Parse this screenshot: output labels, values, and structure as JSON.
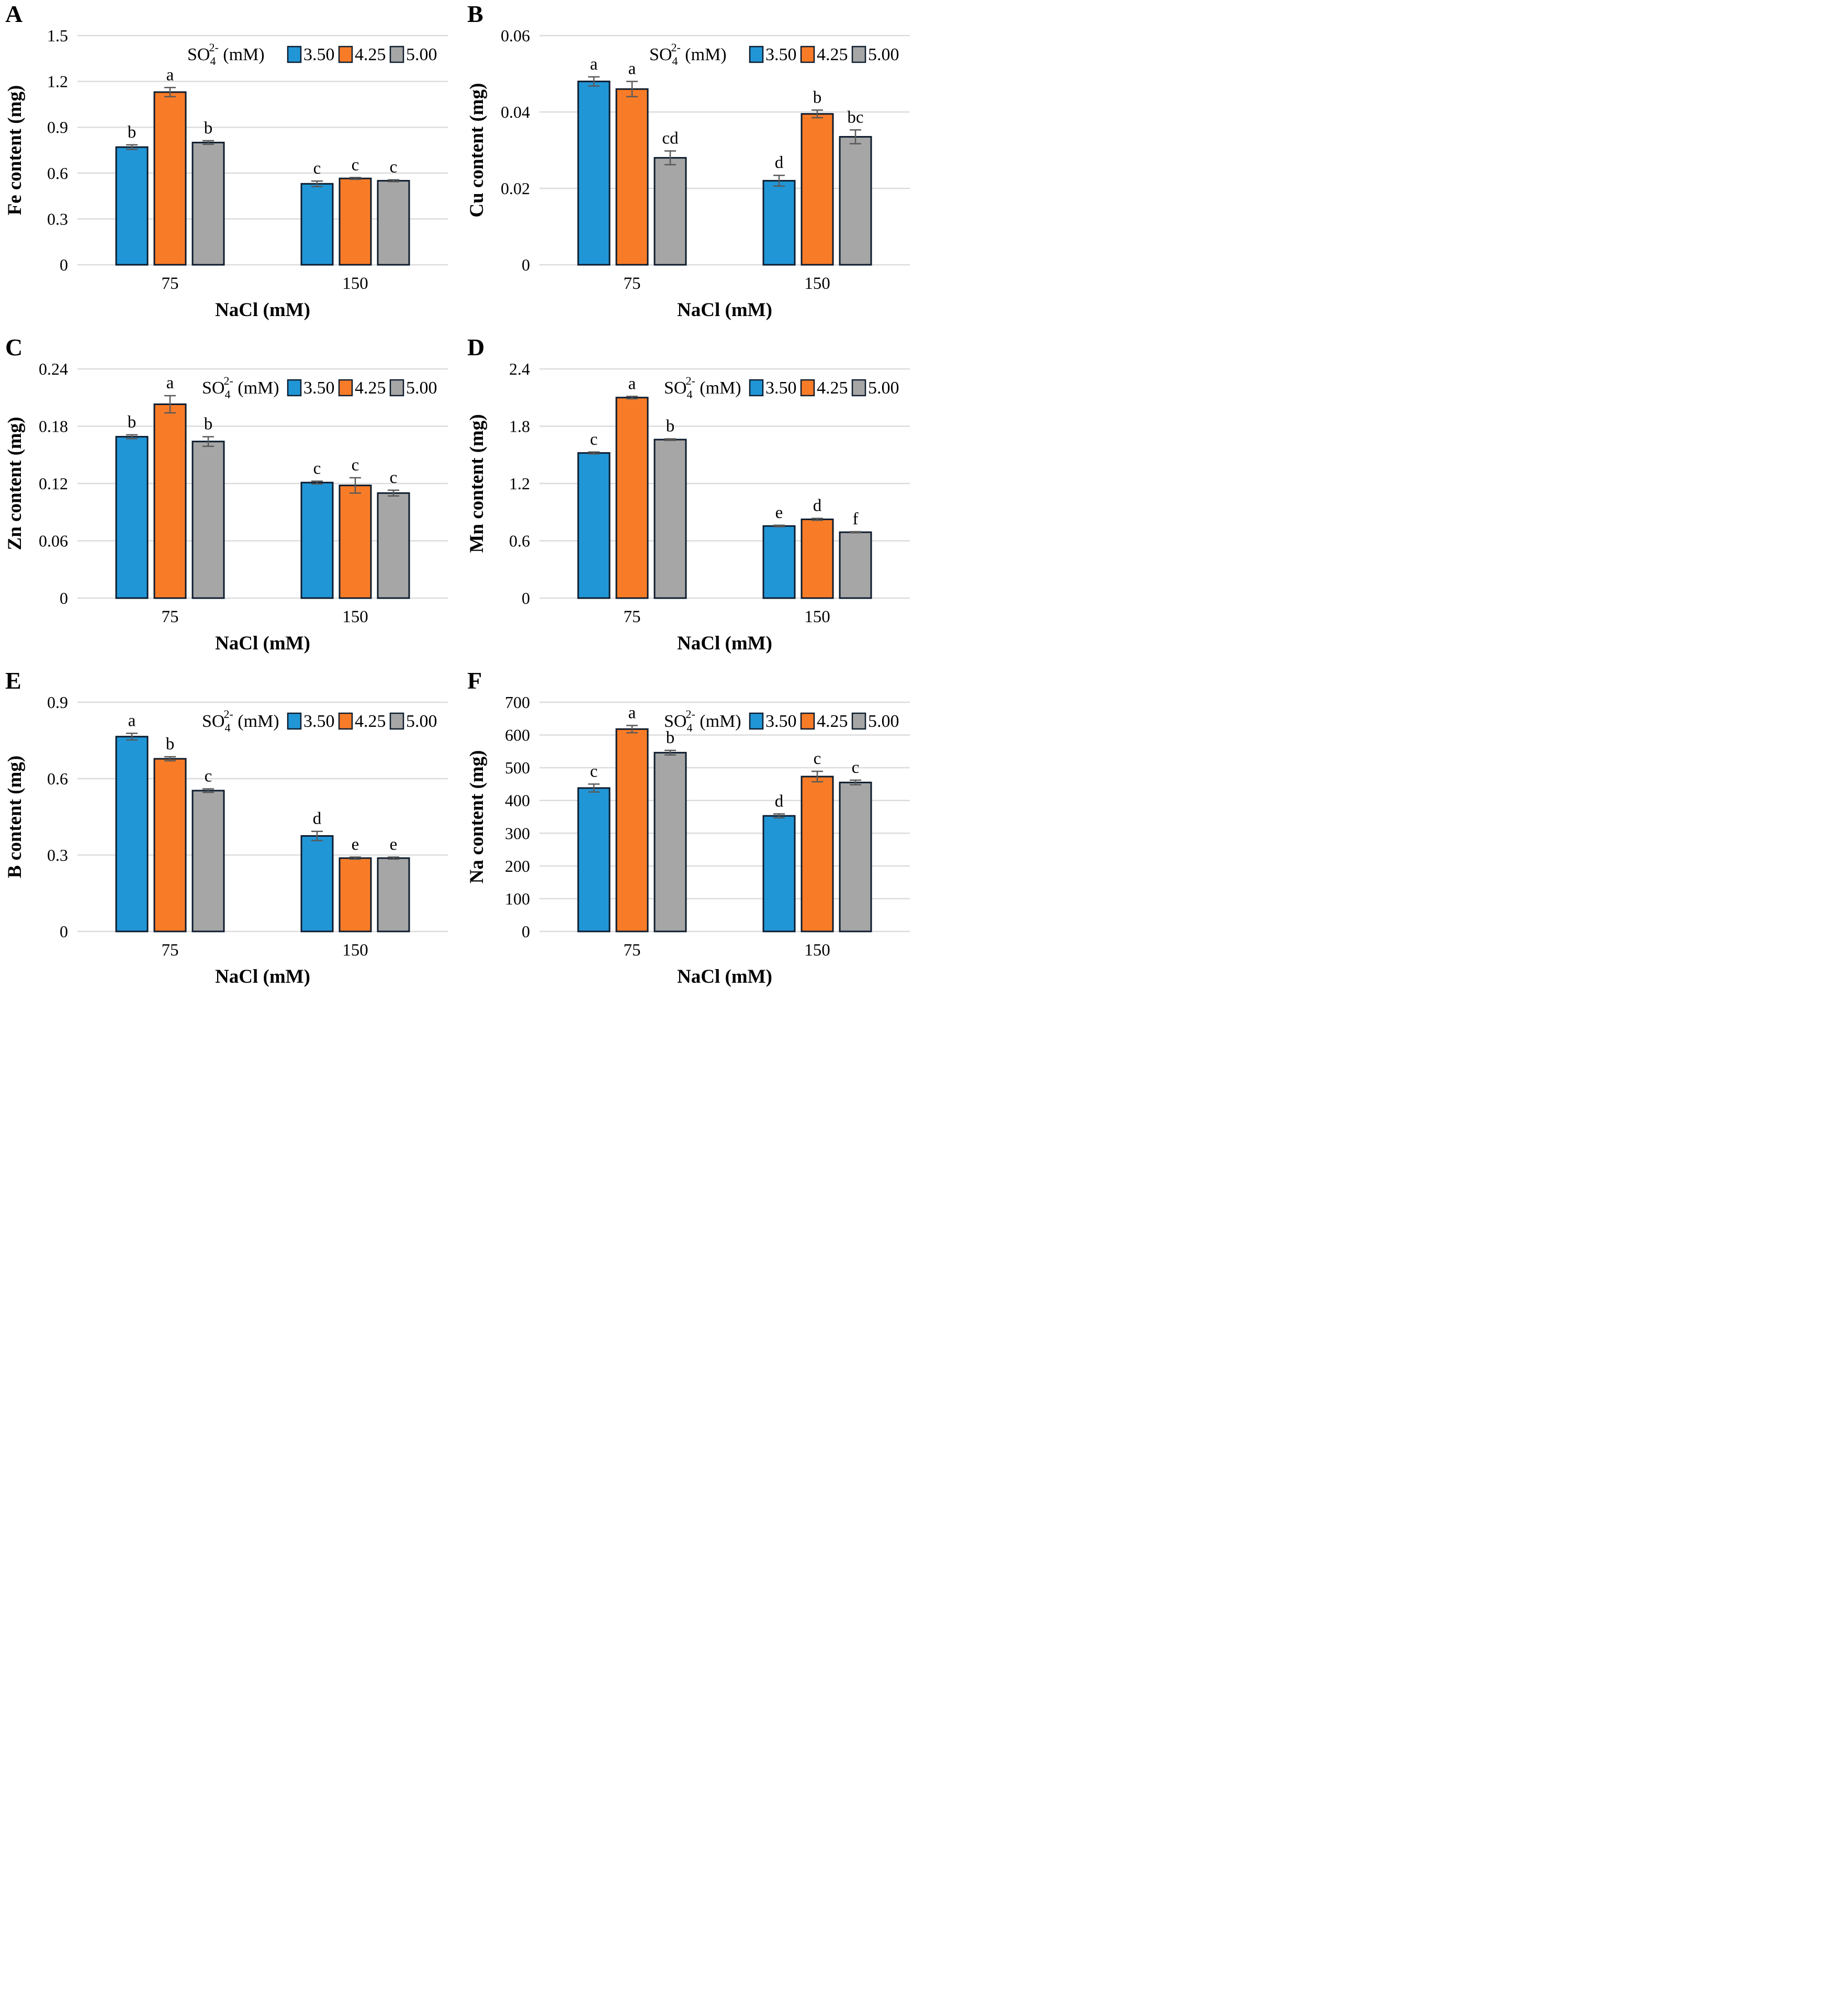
{
  "palette": {
    "series_colors": [
      "#2196D6",
      "#F87C28",
      "#A6A6A6"
    ],
    "bar_border": "#0D1C2E",
    "error_color": "#595959",
    "grid_color": "#DCDCDC",
    "text_color": "#000000"
  },
  "legend": {
    "title_main": "SO",
    "title_sub": "4",
    "title_sup": "2-",
    "title_rest": " (mM)",
    "entries": [
      "3.50",
      "4.25",
      "5.00"
    ]
  },
  "chart_data": [
    {
      "type": "bar",
      "panel": "A",
      "ylabel": "Fe content (mg)",
      "xlabel": "NaCl (mM)",
      "ylim": [
        0,
        1.5
      ],
      "yticks": [
        "0",
        "0.3",
        "0.6",
        "0.9",
        "1.2",
        "1.5"
      ],
      "categories": [
        "75",
        "150"
      ],
      "legend_position": "top-right",
      "legend_gap": true,
      "grid": true,
      "series": [
        {
          "name": "3.50",
          "values": [
            0.77,
            0.53
          ],
          "errors": [
            0.015,
            0.018
          ],
          "letters": [
            "b",
            "c"
          ]
        },
        {
          "name": "4.25",
          "values": [
            1.13,
            0.565
          ],
          "errors": [
            0.03,
            0.006
          ],
          "letters": [
            "a",
            "c"
          ]
        },
        {
          "name": "5.00",
          "values": [
            0.8,
            0.55
          ],
          "errors": [
            0.012,
            0.006
          ],
          "letters": [
            "b",
            "c"
          ]
        }
      ]
    },
    {
      "type": "bar",
      "panel": "B",
      "ylabel": "Cu content (mg)",
      "xlabel": "NaCl (mM)",
      "ylim": [
        0,
        0.06
      ],
      "yticks": [
        "0",
        "0.02",
        "0.04",
        "0.06"
      ],
      "categories": [
        "75",
        "150"
      ],
      "legend_position": "top-right",
      "legend_gap": true,
      "grid": true,
      "series": [
        {
          "name": "3.50",
          "values": [
            0.048,
            0.022
          ],
          "errors": [
            0.0012,
            0.0014
          ],
          "letters": [
            "a",
            "d"
          ]
        },
        {
          "name": "4.25",
          "values": [
            0.046,
            0.0395
          ],
          "errors": [
            0.002,
            0.001
          ],
          "letters": [
            "a",
            "b"
          ]
        },
        {
          "name": "5.00",
          "values": [
            0.028,
            0.0335
          ],
          "errors": [
            0.0018,
            0.0018
          ],
          "letters": [
            "cd",
            "bc"
          ]
        }
      ]
    },
    {
      "type": "bar",
      "panel": "C",
      "ylabel": "Zn content (mg)",
      "xlabel": "NaCl (mM)",
      "ylim": [
        0,
        0.24
      ],
      "yticks": [
        "0",
        "0.06",
        "0.12",
        "0.18",
        "0.24"
      ],
      "categories": [
        "75",
        "150"
      ],
      "legend_position": "top-right",
      "legend_gap": false,
      "grid": true,
      "series": [
        {
          "name": "3.50",
          "values": [
            0.169,
            0.121
          ],
          "errors": [
            0.002,
            0.0015
          ],
          "letters": [
            "b",
            "c"
          ]
        },
        {
          "name": "4.25",
          "values": [
            0.203,
            0.118
          ],
          "errors": [
            0.009,
            0.008
          ],
          "letters": [
            "a",
            "c"
          ]
        },
        {
          "name": "5.00",
          "values": [
            0.164,
            0.11
          ],
          "errors": [
            0.005,
            0.003
          ],
          "letters": [
            "b",
            "c"
          ]
        }
      ]
    },
    {
      "type": "bar",
      "panel": "D",
      "ylabel": "Mn content (mg)",
      "xlabel": "NaCl (mM)",
      "ylim": [
        0,
        2.4
      ],
      "yticks": [
        "0",
        "0.6",
        "1.2",
        "1.8",
        "2.4"
      ],
      "categories": [
        "75",
        "150"
      ],
      "legend_position": "top-right",
      "legend_gap": false,
      "grid": true,
      "series": [
        {
          "name": "3.50",
          "values": [
            1.52,
            0.755
          ],
          "errors": [
            0.01,
            0.008
          ],
          "letters": [
            "c",
            "e"
          ]
        },
        {
          "name": "4.25",
          "values": [
            2.1,
            0.825
          ],
          "errors": [
            0.012,
            0.01
          ],
          "letters": [
            "a",
            "d"
          ]
        },
        {
          "name": "5.00",
          "values": [
            1.66,
            0.69
          ],
          "errors": [
            0.008,
            0.006
          ],
          "letters": [
            "b",
            "f"
          ]
        }
      ]
    },
    {
      "type": "bar",
      "panel": "E",
      "ylabel": "B content (mg)",
      "xlabel": "NaCl (mM)",
      "ylim": [
        0,
        0.9
      ],
      "yticks": [
        "0",
        "0.3",
        "0.6",
        "0.9"
      ],
      "categories": [
        "75",
        "150"
      ],
      "legend_position": "top-right",
      "legend_gap": false,
      "grid": true,
      "series": [
        {
          "name": "3.50",
          "values": [
            0.765,
            0.375
          ],
          "errors": [
            0.013,
            0.018
          ],
          "letters": [
            "a",
            "d"
          ]
        },
        {
          "name": "4.25",
          "values": [
            0.678,
            0.288
          ],
          "errors": [
            0.008,
            0.004
          ],
          "letters": [
            "b",
            "e"
          ]
        },
        {
          "name": "5.00",
          "values": [
            0.553,
            0.288
          ],
          "errors": [
            0.007,
            0.004
          ],
          "letters": [
            "c",
            "e"
          ]
        }
      ]
    },
    {
      "type": "bar",
      "panel": "F",
      "ylabel": "Na content (mg)",
      "xlabel": "NaCl (mM)",
      "ylim": [
        0,
        700
      ],
      "yticks": [
        "0",
        "100",
        "200",
        "300",
        "400",
        "500",
        "600",
        "700"
      ],
      "categories": [
        "75",
        "150"
      ],
      "legend_position": "top-right",
      "legend_gap": false,
      "grid": true,
      "series": [
        {
          "name": "3.50",
          "values": [
            438,
            353
          ],
          "errors": [
            12,
            6
          ],
          "letters": [
            "c",
            "d"
          ]
        },
        {
          "name": "4.25",
          "values": [
            618,
            473
          ],
          "errors": [
            11,
            16
          ],
          "letters": [
            "a",
            "c"
          ]
        },
        {
          "name": "5.00",
          "values": [
            546,
            455
          ],
          "errors": [
            7,
            7
          ],
          "letters": [
            "b",
            "c"
          ]
        }
      ]
    }
  ]
}
